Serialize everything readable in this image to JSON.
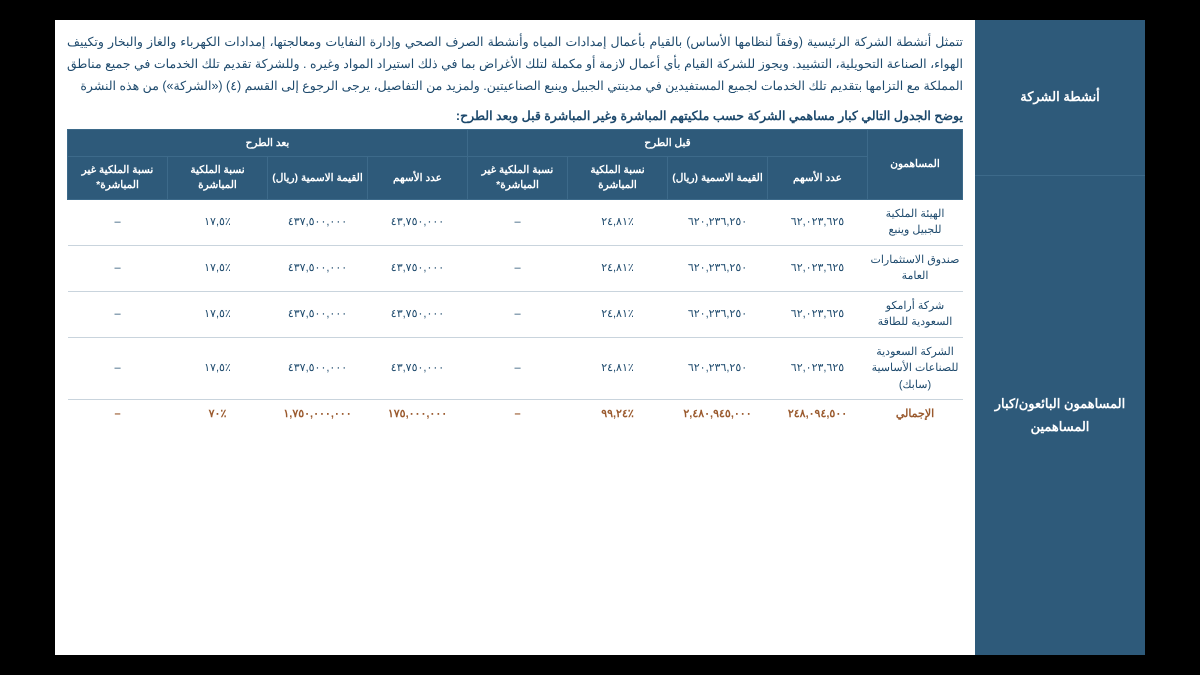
{
  "colors": {
    "header_bg": "#2e5a7a",
    "header_border": "#3d6a8a",
    "text": "#1e4a6d",
    "row_border": "#c9d4dd",
    "total_text": "#9a5a2e",
    "page_bg": "#ffffff",
    "outer_bg": "#000000"
  },
  "side": {
    "row1": "أنشطة الشركة",
    "row2": "المساهمون البائعون/كبار المساهمين"
  },
  "body_text": "تتمثل أنشطة الشركة الرئيسية (وفقاً لنظامها الأساس) بالقيام بأعمال إمدادات المياه وأنشطة الصرف الصحي وإدارة النفايات ومعالجتها، إمدادات الكهرباء والغاز والبخار وتكييف الهواء، الصناعة التحويلية، التشييد. ويجوز للشركة القيام بأي أعمال لازمة أو مكملة لتلك الأغراض بما في ذلك استيراد المواد وغيره . وللشركة تقديم تلك الخدمات في جميع مناطق المملكة مع التزامها بتقديم تلك الخدمات لجميع المستفيدين في مدينتي الجبيل وينبع الصناعيتين. ولمزيد من التفاصيل، يرجى الرجوع إلى القسم (٤) («الشركة») من هذه النشرة",
  "caption": "يوضح الجدول التالي كبار مساهمي الشركة حسب ملكيتهم المباشرة وغير المباشرة قبل وبعد الطرح:",
  "table": {
    "group_headers": {
      "shareholders": "المساهمون",
      "before": "قبل الطرح",
      "after": "بعد الطرح"
    },
    "sub_headers": {
      "shares": "عدد الأسهم",
      "nominal": "القيمة الاسمية (ريال)",
      "direct_pct": "نسبة الملكية المباشرة",
      "indirect_pct": "نسبة الملكية غير المباشرة*"
    },
    "rows": [
      {
        "name": "الهيئة الملكية للجبيل وينبع",
        "b_shares": "٦٢,٠٢٣,٦٢٥",
        "b_nominal": "٦٢٠,٢٣٦,٢٥٠",
        "b_direct": "٪٢٤,٨١",
        "b_indirect": "–",
        "a_shares": "٤٣,٧٥٠,٠٠٠",
        "a_nominal": "٤٣٧,٥٠٠,٠٠٠",
        "a_direct": "٪١٧,٥",
        "a_indirect": "–"
      },
      {
        "name": "صندوق الاستثمارات العامة",
        "b_shares": "٦٢,٠٢٣,٦٢٥",
        "b_nominal": "٦٢٠,٢٣٦,٢٥٠",
        "b_direct": "٪٢٤,٨١",
        "b_indirect": "–",
        "a_shares": "٤٣,٧٥٠,٠٠٠",
        "a_nominal": "٤٣٧,٥٠٠,٠٠٠",
        "a_direct": "٪١٧,٥",
        "a_indirect": "–"
      },
      {
        "name": "شركة أرامكو السعودية للطاقة",
        "b_shares": "٦٢,٠٢٣,٦٢٥",
        "b_nominal": "٦٢٠,٢٣٦,٢٥٠",
        "b_direct": "٪٢٤,٨١",
        "b_indirect": "–",
        "a_shares": "٤٣,٧٥٠,٠٠٠",
        "a_nominal": "٤٣٧,٥٠٠,٠٠٠",
        "a_direct": "٪١٧,٥",
        "a_indirect": "–"
      },
      {
        "name": "الشركة السعودية للصناعات الأساسية (سابك)",
        "b_shares": "٦٢,٠٢٣,٦٢٥",
        "b_nominal": "٦٢٠,٢٣٦,٢٥٠",
        "b_direct": "٪٢٤,٨١",
        "b_indirect": "–",
        "a_shares": "٤٣,٧٥٠,٠٠٠",
        "a_nominal": "٤٣٧,٥٠٠,٠٠٠",
        "a_direct": "٪١٧,٥",
        "a_indirect": "–"
      }
    ],
    "total": {
      "name": "الإجمالي",
      "b_shares": "٢٤٨,٠٩٤,٥٠٠",
      "b_nominal": "٢,٤٨٠,٩٤٥,٠٠٠",
      "b_direct": "٪٩٩,٢٤",
      "b_indirect": "–",
      "a_shares": "١٧٥,٠٠٠,٠٠٠",
      "a_nominal": "١,٧٥٠,٠٠٠,٠٠٠",
      "a_direct": "٪٧٠",
      "a_indirect": "–"
    }
  }
}
